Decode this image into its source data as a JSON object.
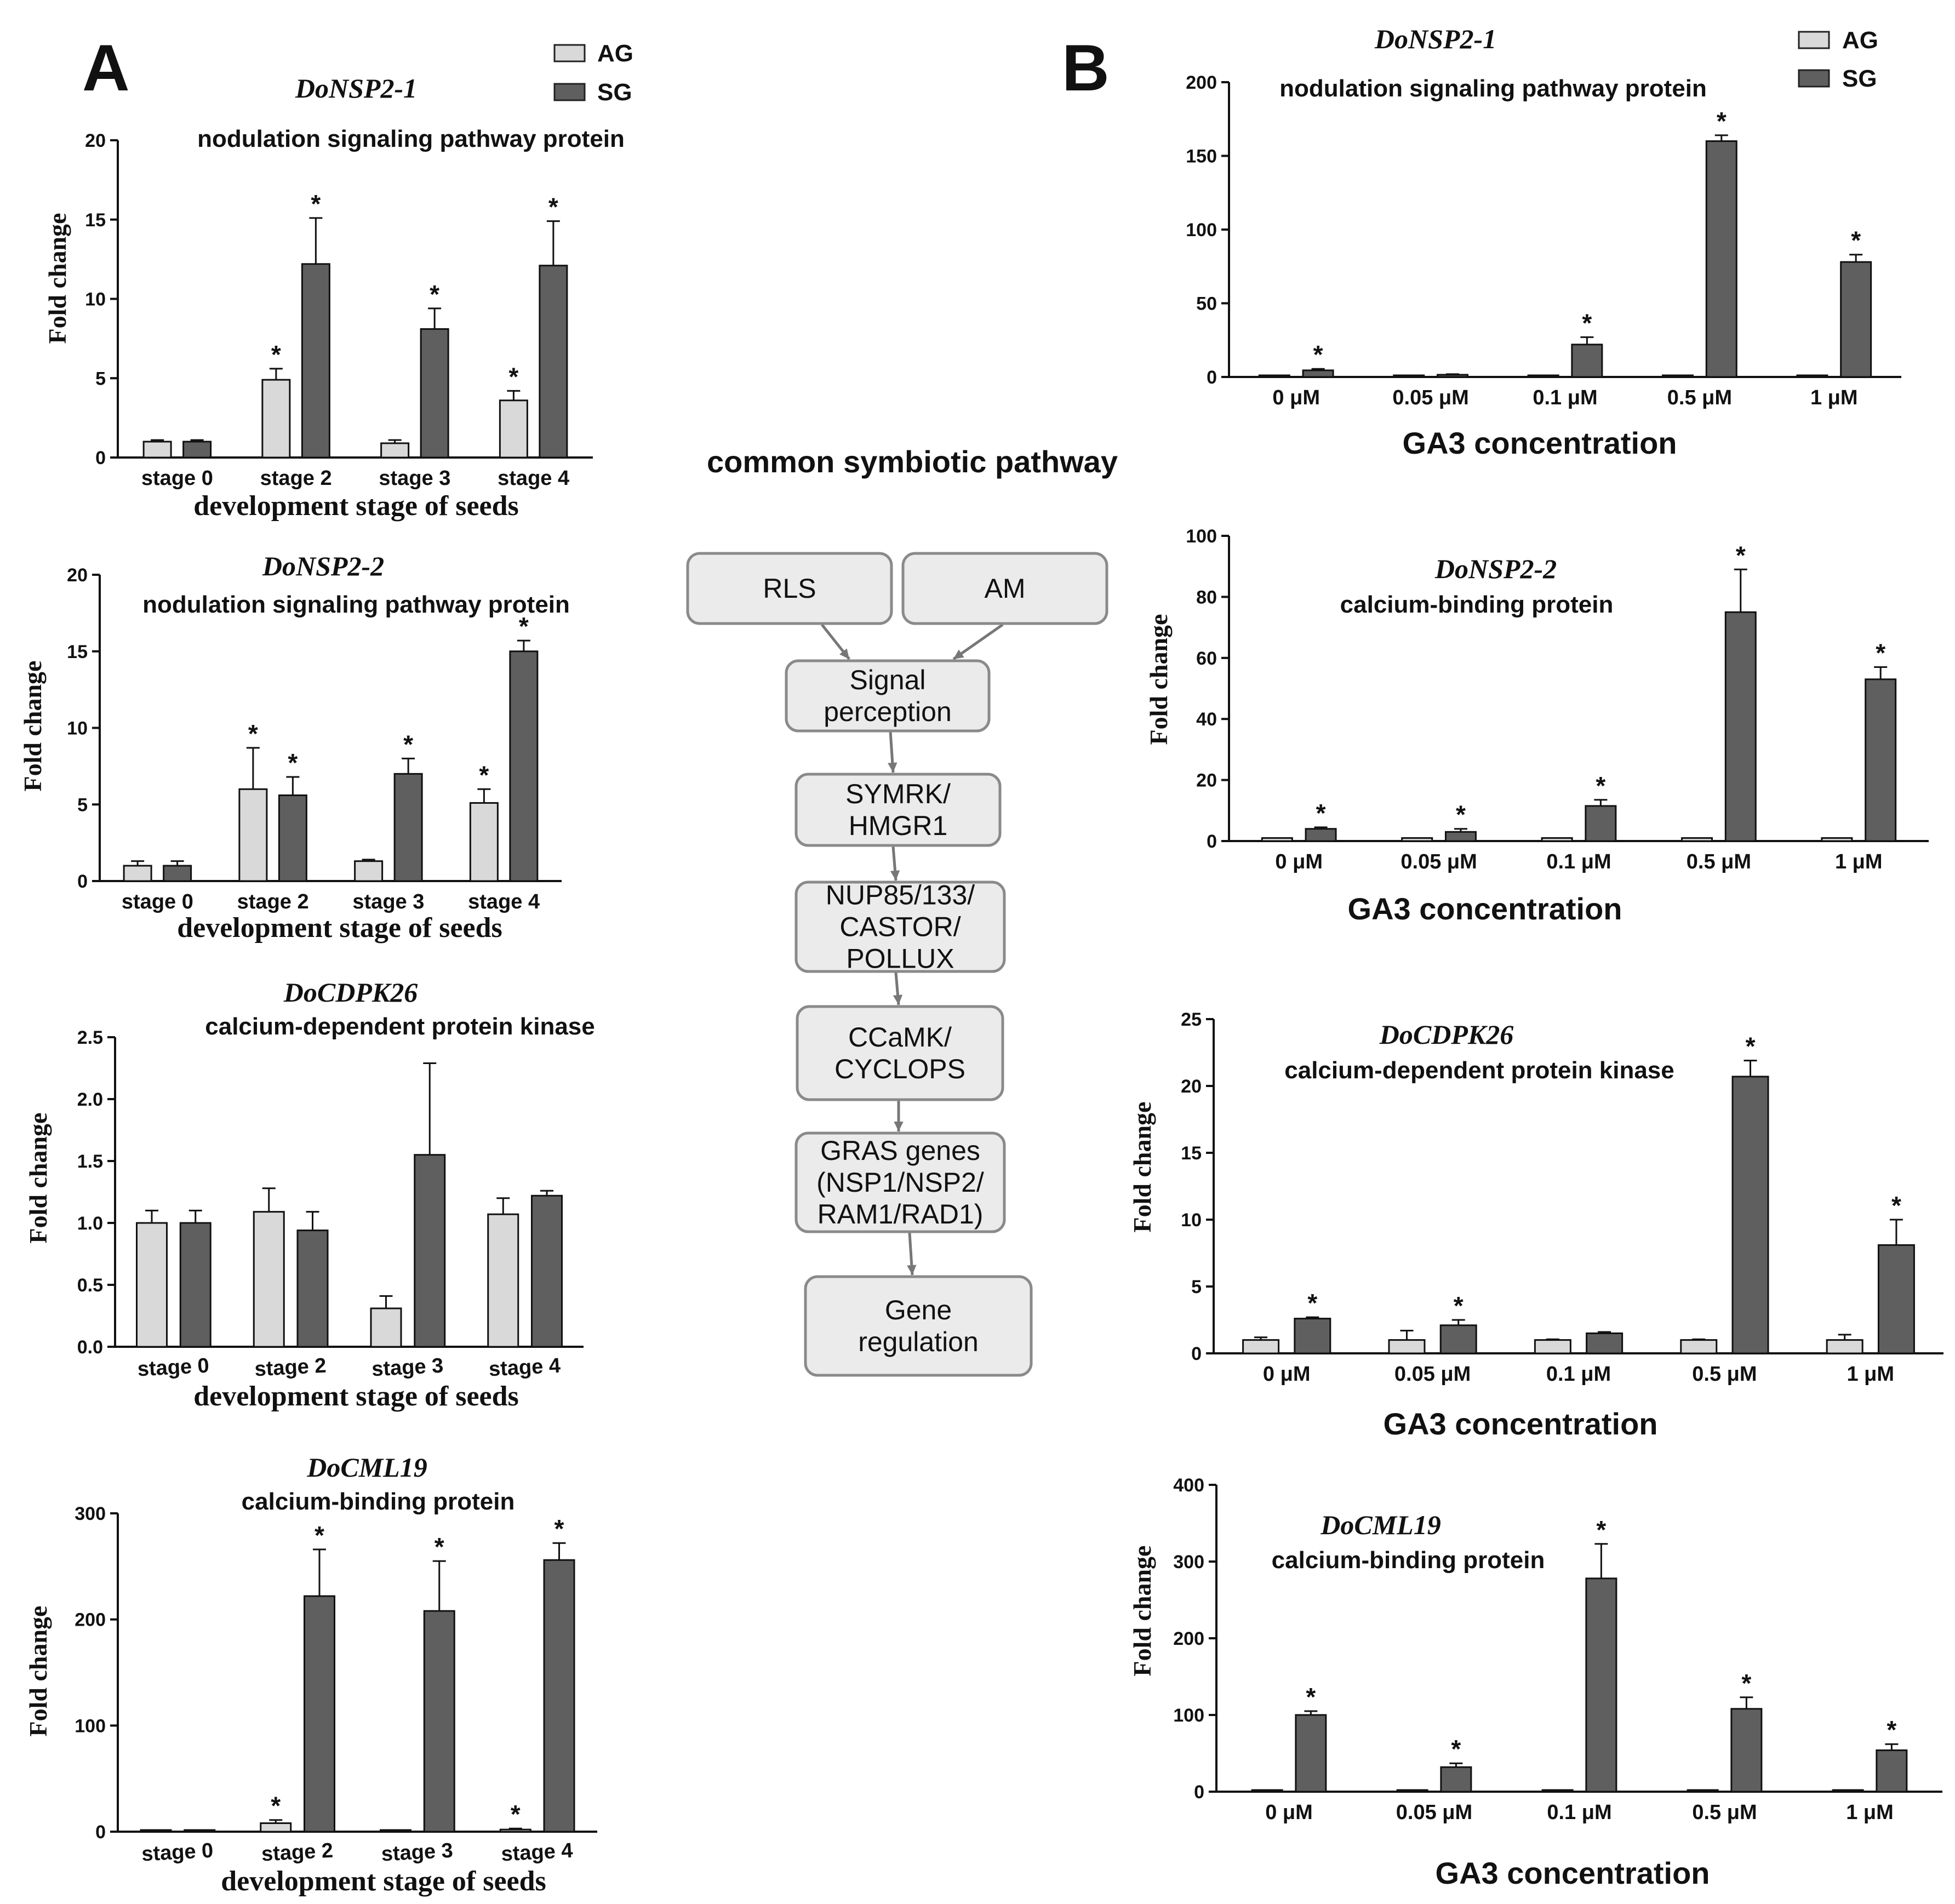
{
  "panels": {
    "a": "A",
    "b": "B"
  },
  "legend": [
    {
      "label": "AG",
      "color": "#d9d9d9"
    },
    {
      "label": "SG",
      "color": "#5f5f5f"
    }
  ],
  "flow": {
    "title": "common symbiotic pathway",
    "boxes": [
      {
        "lines": [
          "RLS"
        ]
      },
      {
        "lines": [
          "AM"
        ]
      },
      {
        "lines": [
          "Signal",
          "perception"
        ]
      },
      {
        "lines": [
          "SYMRK/",
          "HMGR1"
        ]
      },
      {
        "lines": [
          "NUP85/133/",
          "CASTOR/",
          "POLLUX"
        ]
      },
      {
        "lines": [
          "CCaMK/",
          "CYCLOPS"
        ]
      },
      {
        "lines": [
          "GRAS genes",
          "(NSP1/NSP2/",
          "RAM1/RAD1)"
        ]
      },
      {
        "lines": [
          "Gene",
          "regulation"
        ]
      }
    ]
  },
  "chart_data": [
    {
      "type": "bar",
      "panel": "A",
      "title": "DoNSP2-1",
      "subtitle": "nodulation signaling pathway protein",
      "categories": [
        "stage 0",
        "stage 2",
        "stage 3",
        "stage 4"
      ],
      "series": [
        {
          "name": "AG",
          "values": [
            1.0,
            4.9,
            0.9,
            3.6
          ],
          "errors": [
            0.1,
            0.7,
            0.2,
            0.6
          ],
          "sig": [
            false,
            true,
            false,
            true
          ]
        },
        {
          "name": "SG",
          "values": [
            1.0,
            12.2,
            8.1,
            12.1
          ],
          "errors": [
            0.1,
            2.9,
            1.3,
            2.8
          ],
          "sig": [
            false,
            true,
            true,
            true
          ]
        }
      ],
      "xlabel": "development stage of seeds",
      "ylabel": "Fold change",
      "ylim": [
        0,
        20
      ],
      "yticks": [
        0,
        5,
        10,
        15,
        20
      ],
      "ytick_labels": [
        "0",
        "5",
        "10",
        "15",
        "20"
      ]
    },
    {
      "type": "bar",
      "panel": "A",
      "title": "DoNSP2-2",
      "subtitle": "nodulation signaling pathway protein",
      "categories": [
        "stage 0",
        "stage 2",
        "stage 3",
        "stage 4"
      ],
      "series": [
        {
          "name": "AG",
          "values": [
            1.0,
            6.0,
            1.3,
            5.1
          ],
          "errors": [
            0.3,
            2.7,
            0.1,
            0.9
          ],
          "sig": [
            false,
            true,
            false,
            true
          ]
        },
        {
          "name": "SG",
          "values": [
            1.0,
            5.6,
            7.0,
            15.0
          ],
          "errors": [
            0.3,
            1.2,
            1.0,
            0.7
          ],
          "sig": [
            false,
            true,
            true,
            true
          ]
        }
      ],
      "xlabel": "development stage of seeds",
      "ylabel": "Fold change",
      "ylim": [
        0,
        20
      ],
      "yticks": [
        0,
        5,
        10,
        15,
        20
      ],
      "ytick_labels": [
        "0",
        "5",
        "10",
        "15",
        "20"
      ]
    },
    {
      "type": "bar",
      "panel": "A",
      "title": "DoCDPK26",
      "subtitle": "calcium-dependent protein kinase",
      "categories": [
        "stage 0",
        "stage 2",
        "stage 3",
        "stage 4"
      ],
      "series": [
        {
          "name": "AG",
          "values": [
            1.0,
            1.09,
            0.31,
            1.07
          ],
          "errors": [
            0.1,
            0.19,
            0.1,
            0.13
          ],
          "sig": [
            false,
            false,
            false,
            false
          ]
        },
        {
          "name": "SG",
          "values": [
            1.0,
            0.94,
            1.55,
            1.22
          ],
          "errors": [
            0.1,
            0.15,
            0.74,
            0.04
          ],
          "sig": [
            false,
            false,
            false,
            false
          ]
        }
      ],
      "xlabel": "development stage of seeds",
      "ylabel": "Fold change",
      "ylim": [
        0,
        2.5
      ],
      "yticks": [
        0,
        0.5,
        1,
        1.5,
        2,
        2.5
      ],
      "ytick_labels": [
        "0.0",
        "0.5",
        "1.0",
        "1.5",
        "2.0",
        "2.5"
      ]
    },
    {
      "type": "bar",
      "panel": "A",
      "title": "DoCML19",
      "subtitle": "calcium-binding protein",
      "categories": [
        "stage 0",
        "stage 2",
        "stage 3",
        "stage 4"
      ],
      "series": [
        {
          "name": "AG",
          "values": [
            1,
            8,
            1,
            2
          ],
          "errors": [
            0.5,
            3,
            0.5,
            1
          ],
          "sig": [
            false,
            true,
            false,
            true
          ]
        },
        {
          "name": "SG",
          "values": [
            1,
            222,
            208,
            256
          ],
          "errors": [
            0.5,
            44,
            47,
            16
          ],
          "sig": [
            false,
            true,
            true,
            true
          ]
        }
      ],
      "xlabel": "development stage of seeds",
      "ylabel": "Fold change",
      "ylim": [
        0,
        300
      ],
      "yticks": [
        0,
        100,
        200,
        300
      ],
      "ytick_labels": [
        "0",
        "100",
        "200",
        "300"
      ]
    },
    {
      "type": "bar",
      "panel": "B",
      "title": "DoNSP2-1",
      "subtitle": "nodulation signaling pathway protein",
      "categories": [
        "0 μM",
        "0.05 μM",
        "0.1 μM",
        "0.5 μM",
        "1 μM"
      ],
      "series": [
        {
          "name": "AG",
          "values": [
            1,
            1,
            1,
            1,
            1
          ],
          "errors": [
            0,
            0,
            0,
            0,
            0
          ],
          "sig": [
            false,
            false,
            false,
            false,
            false
          ]
        },
        {
          "name": "SG",
          "values": [
            4.5,
            1.5,
            22,
            160,
            78
          ],
          "errors": [
            1,
            0.4,
            5,
            4,
            5
          ],
          "sig": [
            true,
            false,
            true,
            true,
            true
          ]
        }
      ],
      "xlabel": "GA3 concentration",
      "ylabel": "",
      "ylim": [
        0,
        200
      ],
      "yticks": [
        0,
        50,
        100,
        150,
        200
      ],
      "ytick_labels": [
        "0",
        "50",
        "100",
        "150",
        "200"
      ]
    },
    {
      "type": "bar",
      "panel": "B",
      "title": "DoNSP2-2",
      "subtitle": "calcium-binding protein",
      "categories": [
        "0 μM",
        "0.05 μM",
        "0.1 μM",
        "0.5 μM",
        "1 μM"
      ],
      "series": [
        {
          "name": "AG",
          "values": [
            1,
            1,
            1,
            1,
            1
          ],
          "errors": [
            0,
            0,
            0,
            0,
            0
          ],
          "sig": [
            false,
            false,
            false,
            false,
            false
          ]
        },
        {
          "name": "SG",
          "values": [
            4,
            3,
            11.5,
            75,
            53
          ],
          "errors": [
            0.5,
            1,
            2,
            14,
            4
          ],
          "sig": [
            true,
            true,
            true,
            true,
            true
          ]
        }
      ],
      "xlabel": "GA3 concentration",
      "ylabel": "Fold change",
      "ylim": [
        0,
        100
      ],
      "yticks": [
        0,
        20,
        40,
        60,
        80,
        100
      ],
      "ytick_labels": [
        "0",
        "20",
        "40",
        "60",
        "80",
        "100"
      ]
    },
    {
      "type": "bar",
      "panel": "B",
      "title": "DoCDPK26",
      "subtitle": "calcium-dependent protein kinase",
      "categories": [
        "0 μM",
        "0.05 μM",
        "0.1 μM",
        "0.5 μM",
        "1 μM"
      ],
      "series": [
        {
          "name": "AG",
          "values": [
            1.0,
            1.0,
            1.0,
            1.0,
            1.0
          ],
          "errors": [
            0.2,
            0.7,
            0.05,
            0.05,
            0.4
          ],
          "sig": [
            false,
            false,
            false,
            false,
            false
          ]
        },
        {
          "name": "SG",
          "values": [
            2.6,
            2.1,
            1.5,
            20.7,
            8.1
          ],
          "errors": [
            0.1,
            0.4,
            0.1,
            1.2,
            1.9
          ],
          "sig": [
            true,
            true,
            false,
            true,
            true
          ]
        }
      ],
      "xlabel": "GA3 concentration",
      "ylabel": "Fold change",
      "ylim": [
        0,
        25
      ],
      "yticks": [
        0,
        5,
        10,
        15,
        20,
        25
      ],
      "ytick_labels": [
        "0",
        "5",
        "10",
        "15",
        "20",
        "25"
      ]
    },
    {
      "type": "bar",
      "panel": "B",
      "title": "DoCML19",
      "subtitle": "calcium-binding protein",
      "categories": [
        "0 μM",
        "0.05 μM",
        "0.1 μM",
        "0.5 μM",
        "1 μM"
      ],
      "series": [
        {
          "name": "AG",
          "values": [
            1,
            1,
            1,
            1,
            1
          ],
          "errors": [
            0,
            0,
            0,
            0,
            0
          ],
          "sig": [
            false,
            false,
            false,
            false,
            false
          ]
        },
        {
          "name": "SG",
          "values": [
            100,
            32,
            278,
            108,
            54
          ],
          "errors": [
            5,
            5,
            45,
            15,
            8
          ],
          "sig": [
            true,
            true,
            true,
            true,
            true
          ]
        }
      ],
      "xlabel": "GA3 concentration",
      "ylabel": "Fold change",
      "ylim": [
        0,
        400
      ],
      "yticks": [
        0,
        100,
        200,
        300,
        400
      ],
      "ytick_labels": [
        "0",
        "100",
        "200",
        "300",
        "400"
      ]
    }
  ]
}
